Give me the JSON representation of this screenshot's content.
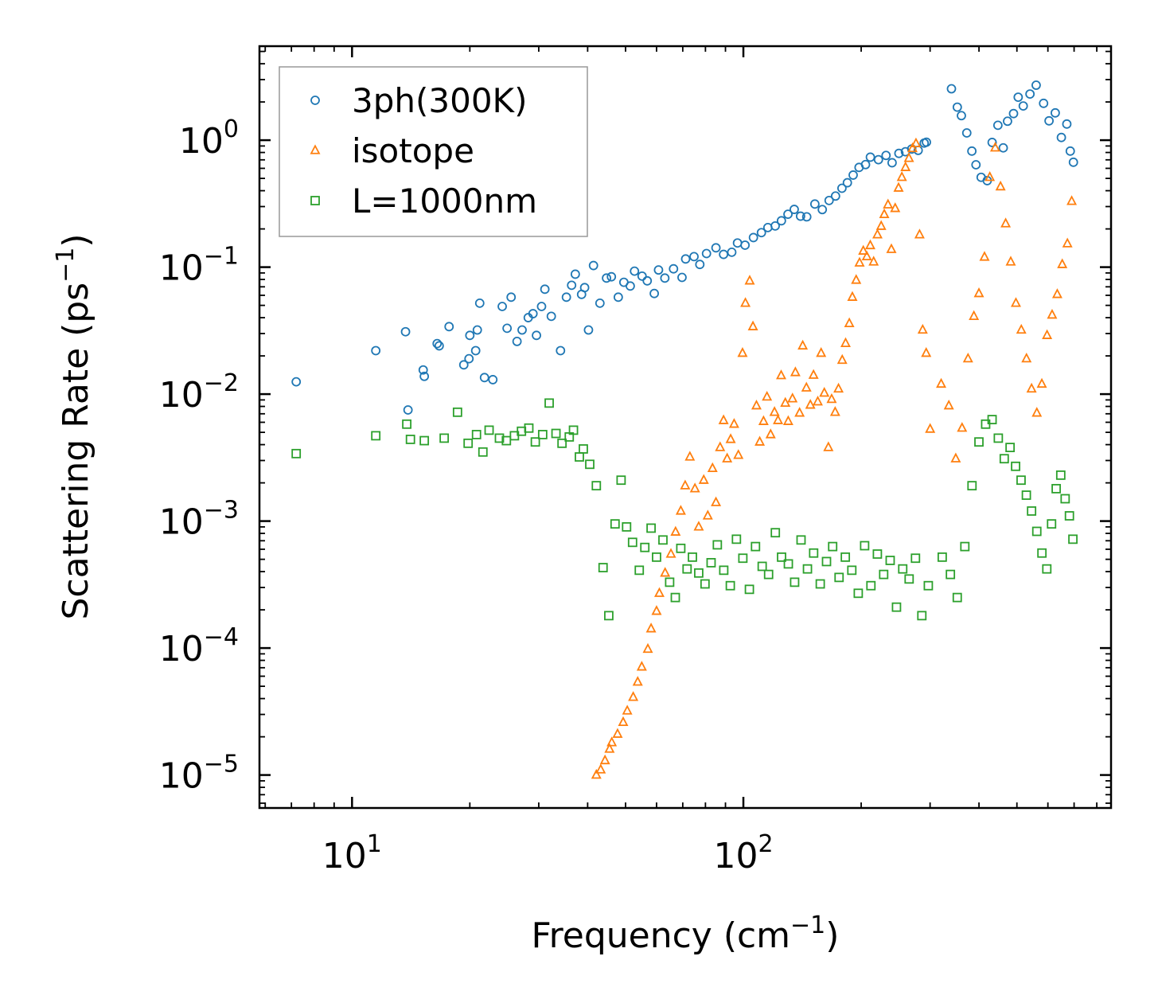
{
  "chart_data": {
    "type": "scatter",
    "title": "",
    "xlabel": "Frequency (cm",
    "xlabel_sup": "−1",
    "xlabel_end": ")",
    "ylabel": "Scattering Rate (ps",
    "ylabel_sup": "−1",
    "ylabel_end": ")",
    "xscale": "log",
    "yscale": "log",
    "xlim": [
      5.8,
      870
    ],
    "ylim": [
      5.5e-06,
      5.5
    ],
    "x_ticks": [
      {
        "value": 10,
        "base": "10",
        "exp": "1"
      },
      {
        "value": 100,
        "base": "10",
        "exp": "2"
      }
    ],
    "y_ticks": [
      {
        "value": 1,
        "base": "10",
        "exp": "0"
      },
      {
        "value": 0.1,
        "base": "10",
        "exp": "−1"
      },
      {
        "value": 0.01,
        "base": "10",
        "exp": "−2"
      },
      {
        "value": 0.001,
        "base": "10",
        "exp": "−3"
      },
      {
        "value": 0.0001,
        "base": "10",
        "exp": "−4"
      },
      {
        "value": 1e-05,
        "base": "10",
        "exp": "−5"
      }
    ],
    "legend_position": "top-left",
    "series": [
      {
        "name": "3ph(300K)",
        "marker": "circle",
        "color": "#1f77b4",
        "x": [
          7.2,
          11.5,
          13.9,
          13.7,
          15.2,
          15.3,
          16.5,
          16.7,
          17.7,
          19.3,
          19.9,
          20.0,
          20.7,
          20.9,
          21.2,
          21.8,
          22.9,
          24.2,
          24.9,
          25.5,
          26.4,
          27.2,
          28.2,
          29.0,
          29.6,
          30.5,
          31.1,
          32.3,
          34.1,
          35.3,
          36.4,
          37.2,
          38.6,
          39.3,
          40.2,
          41.4,
          43.0,
          44.7,
          46.0,
          47.9,
          49.5,
          51.4,
          52.7,
          55.1,
          56.8,
          59.2,
          60.7,
          63.0,
          66.3,
          69.7,
          71.2,
          74.8,
          77.4,
          80.5,
          85.1,
          89.0,
          93.4,
          96.6,
          101.0,
          106.1,
          111.2,
          115.5,
          120.6,
          125.1,
          130.0,
          134.9,
          140.0,
          145.2,
          152.3,
          159.1,
          165.6,
          172.0,
          178.6,
          184.4,
          190.8,
          197.5,
          205.2,
          211.1,
          221.4,
          231.5,
          239.9,
          249.7,
          259.5,
          269.3,
          279.7,
          289.8,
          293.6,
          340.2,
          352.1,
          360.7,
          372.3,
          383.6,
          393.0,
          405.1,
          419.9,
          432.2,
          447.1,
          461.4,
          473.2,
          490.2,
          503.8,
          519.0,
          540.0,
          560.0,
          585.0,
          604.1,
          626.6,
          649.5,
          670.7,
          684.4,
          697.2
        ],
        "y": [
          0.0125,
          0.022,
          0.0075,
          0.031,
          0.0155,
          0.0138,
          0.025,
          0.024,
          0.034,
          0.017,
          0.019,
          0.029,
          0.022,
          0.032,
          0.052,
          0.0135,
          0.013,
          0.049,
          0.033,
          0.058,
          0.026,
          0.032,
          0.04,
          0.043,
          0.029,
          0.049,
          0.067,
          0.041,
          0.022,
          0.058,
          0.072,
          0.088,
          0.061,
          0.069,
          0.032,
          0.103,
          0.052,
          0.082,
          0.084,
          0.058,
          0.076,
          0.071,
          0.093,
          0.085,
          0.078,
          0.062,
          0.095,
          0.082,
          0.097,
          0.083,
          0.116,
          0.121,
          0.105,
          0.128,
          0.142,
          0.126,
          0.131,
          0.155,
          0.149,
          0.171,
          0.187,
          0.205,
          0.211,
          0.232,
          0.261,
          0.285,
          0.252,
          0.249,
          0.314,
          0.284,
          0.335,
          0.363,
          0.418,
          0.462,
          0.531,
          0.61,
          0.642,
          0.735,
          0.702,
          0.758,
          0.664,
          0.787,
          0.811,
          0.852,
          0.831,
          0.949,
          0.964,
          2.54,
          1.82,
          1.56,
          1.14,
          0.82,
          0.64,
          0.51,
          0.48,
          0.96,
          1.31,
          0.87,
          1.41,
          1.62,
          2.18,
          1.86,
          2.31,
          2.71,
          1.95,
          1.42,
          1.64,
          1.05,
          1.34,
          0.82,
          0.67
        ]
      },
      {
        "name": "isotope",
        "marker": "triangle",
        "color": "#ff7f0e",
        "x": [
          42.1,
          43.2,
          44.3,
          45.5,
          46.1,
          47.7,
          49.3,
          50.5,
          52.3,
          53.7,
          55.0,
          57.0,
          58.1,
          60.0,
          61.0,
          63.1,
          65.3,
          67.1,
          69.2,
          71.0,
          73.0,
          75.2,
          76.9,
          79.2,
          81.1,
          83.4,
          85.1,
          87.2,
          89.0,
          90.9,
          92.8,
          94.7,
          97.1,
          99.5,
          101.2,
          103.8,
          105.8,
          108.0,
          110.1,
          112.6,
          114.9,
          117.4,
          120.1,
          122.6,
          124.9,
          128.0,
          130.2,
          133.5,
          135.8,
          139.2,
          141.8,
          144.9,
          148.3,
          151.1,
          154.9,
          158.0,
          161.0,
          164.9,
          168.1,
          171.6,
          175.0,
          178.9,
          182.5,
          186.5,
          189.9,
          194.2,
          198.1,
          202.5,
          206.8,
          211.0,
          215.2,
          220.1,
          225.0,
          229.1,
          234.2,
          238.9,
          244.3,
          249.2,
          254.1,
          259.6,
          264.9,
          270.5,
          276.1,
          282.0,
          287.2,
          293.2,
          300.1,
          320.2,
          335.0,
          348.9,
          362.1,
          375.0,
          388.2,
          399.9,
          413.2,
          426.3,
          440.0,
          454.1,
          468.0,
          482.2,
          497.1,
          513.1,
          529.0,
          545.0,
          562.2,
          579.0,
          597.1,
          615.1,
          634.0,
          652.9,
          673.0,
          690.2
        ],
        "y": [
          1e-05,
          1.1e-05,
          1.3e-05,
          1.6e-05,
          1.8e-05,
          2.1e-05,
          2.6e-05,
          3.2e-05,
          4.1e-05,
          5.4e-05,
          7.1e-05,
          9.8e-05,
          0.000142,
          0.000195,
          0.00027,
          0.00039,
          0.00055,
          0.00082,
          0.0012,
          0.0019,
          0.0032,
          0.0018,
          0.0009,
          0.0021,
          0.0011,
          0.0026,
          0.0014,
          0.0038,
          0.0062,
          0.0031,
          0.0044,
          0.0058,
          0.0033,
          0.021,
          0.052,
          0.078,
          0.034,
          0.0081,
          0.0042,
          0.0061,
          0.0095,
          0.0048,
          0.0072,
          0.0062,
          0.014,
          0.0085,
          0.0061,
          0.0092,
          0.0148,
          0.0071,
          0.024,
          0.0112,
          0.0082,
          0.0141,
          0.0087,
          0.021,
          0.0102,
          0.0038,
          0.0091,
          0.0072,
          0.011,
          0.0185,
          0.0251,
          0.036,
          0.058,
          0.079,
          0.108,
          0.134,
          0.121,
          0.148,
          0.11,
          0.18,
          0.21,
          0.26,
          0.31,
          0.138,
          0.29,
          0.42,
          0.51,
          0.61,
          0.72,
          0.86,
          0.94,
          0.18,
          0.032,
          0.021,
          0.0053,
          0.012,
          0.0081,
          0.0031,
          0.0054,
          0.019,
          0.041,
          0.062,
          0.12,
          0.51,
          0.87,
          0.43,
          0.22,
          0.11,
          0.052,
          0.032,
          0.019,
          0.011,
          0.0071,
          0.012,
          0.029,
          0.042,
          0.061,
          0.105,
          0.153,
          0.33
        ]
      },
      {
        "name": "L=1000nm",
        "marker": "square",
        "color": "#2ca02c",
        "x": [
          7.2,
          11.5,
          13.8,
          14.1,
          15.3,
          17.2,
          18.6,
          19.8,
          20.8,
          21.6,
          22.4,
          23.8,
          24.8,
          26.0,
          27.1,
          28.3,
          29.4,
          30.7,
          31.9,
          33.2,
          34.4,
          35.9,
          36.8,
          38.1,
          39.0,
          40.5,
          42.1,
          43.8,
          45.3,
          47.0,
          48.7,
          50.3,
          52.1,
          54.2,
          56.0,
          58.1,
          60.0,
          62.3,
          64.8,
          67.0,
          69.2,
          71.8,
          74.1,
          76.9,
          79.8,
          82.7,
          85.8,
          89.1,
          92.6,
          96.0,
          99.7,
          103.6,
          107.4,
          111.7,
          116.0,
          120.7,
          125.2,
          130.3,
          135.2,
          140.4,
          145.8,
          151.2,
          157.2,
          163.1,
          169.1,
          175.6,
          182.2,
          189.3,
          196.6,
          204.1,
          211.8,
          220.0,
          228.3,
          237.2,
          246.2,
          255.4,
          265.2,
          275.3,
          285.8,
          296.9,
          322.2,
          338.1,
          352.0,
          368.1,
          383.9,
          399.9,
          416.0,
          432.1,
          448.2,
          464.1,
          480.3,
          496.2,
          512.4,
          528.6,
          545.1,
          562.1,
          579.3,
          596.2,
          613.1,
          630.0,
          647.2,
          664.1,
          681.0,
          695.1
        ],
        "y": [
          0.0034,
          0.0047,
          0.0058,
          0.0044,
          0.0043,
          0.0045,
          0.0072,
          0.0041,
          0.0048,
          0.0035,
          0.0052,
          0.0045,
          0.0043,
          0.0047,
          0.0051,
          0.0054,
          0.0042,
          0.0048,
          0.0085,
          0.0049,
          0.0041,
          0.0046,
          0.0052,
          0.0032,
          0.0037,
          0.0028,
          0.0019,
          0.00043,
          0.00018,
          0.00095,
          0.0021,
          0.0009,
          0.00068,
          0.00041,
          0.00062,
          0.00088,
          0.00052,
          0.00071,
          0.00033,
          0.00025,
          0.00061,
          0.00042,
          0.00052,
          0.00039,
          0.00032,
          0.00047,
          0.00065,
          0.00041,
          0.00031,
          0.00072,
          0.00051,
          0.00029,
          0.00063,
          0.00044,
          0.00038,
          0.00081,
          0.00052,
          0.00046,
          0.00033,
          0.00071,
          0.00042,
          0.00056,
          0.00032,
          0.00048,
          0.00063,
          0.00036,
          0.00052,
          0.00041,
          0.00027,
          0.00064,
          0.00031,
          0.00055,
          0.00038,
          0.00049,
          0.00021,
          0.00042,
          0.00035,
          0.00051,
          0.00018,
          0.00031,
          0.00052,
          0.00038,
          0.00025,
          0.00063,
          0.0019,
          0.0042,
          0.0058,
          0.0063,
          0.0045,
          0.0031,
          0.0038,
          0.0027,
          0.0021,
          0.0016,
          0.0012,
          0.00083,
          0.00056,
          0.00042,
          0.00095,
          0.0018,
          0.0023,
          0.0015,
          0.0011,
          0.00072
        ]
      }
    ]
  }
}
